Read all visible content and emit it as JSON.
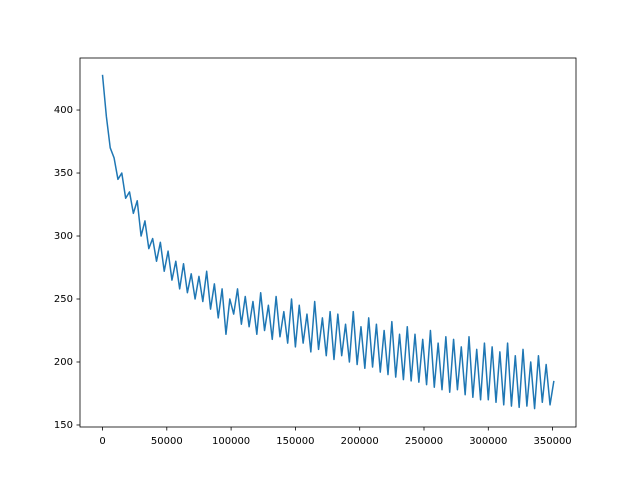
{
  "chart_data": {
    "type": "line",
    "x": [
      0,
      3000,
      6000,
      9000,
      12000,
      15000,
      18000,
      21000,
      24000,
      27000,
      30000,
      33000,
      36000,
      39000,
      42000,
      45000,
      48000,
      51000,
      54000,
      57000,
      60000,
      63000,
      66000,
      69000,
      72000,
      75000,
      78000,
      81000,
      84000,
      87000,
      90000,
      93000,
      96000,
      99000,
      102000,
      105000,
      108000,
      111000,
      114000,
      117000,
      120000,
      123000,
      126000,
      129000,
      132000,
      135000,
      138000,
      141000,
      144000,
      147000,
      150000,
      153000,
      156000,
      159000,
      162000,
      165000,
      168000,
      171000,
      174000,
      177000,
      180000,
      183000,
      186000,
      189000,
      192000,
      195000,
      198000,
      201000,
      204000,
      207000,
      210000,
      213000,
      216000,
      219000,
      222000,
      225000,
      228000,
      231000,
      234000,
      237000,
      240000,
      243000,
      246000,
      249000,
      252000,
      255000,
      258000,
      261000,
      264000,
      267000,
      270000,
      273000,
      276000,
      279000,
      282000,
      285000,
      288000,
      291000,
      294000,
      297000,
      300000,
      303000,
      306000,
      309000,
      312000,
      315000,
      318000,
      321000,
      324000,
      327000,
      330000,
      333000,
      336000,
      339000,
      342000,
      345000,
      348000,
      351000
    ],
    "series": [
      {
        "color": "#1f77b4",
        "values": [
          428,
          395,
          370,
          362,
          345,
          350,
          330,
          335,
          318,
          328,
          300,
          312,
          290,
          298,
          280,
          295,
          272,
          288,
          265,
          280,
          258,
          278,
          255,
          270,
          250,
          268,
          248,
          272,
          242,
          262,
          235,
          258,
          222,
          250,
          238,
          258,
          230,
          252,
          228,
          248,
          222,
          255,
          225,
          245,
          218,
          252,
          220,
          240,
          215,
          250,
          212,
          245,
          215,
          238,
          208,
          248,
          210,
          235,
          205,
          240,
          202,
          238,
          205,
          230,
          200,
          240,
          198,
          228,
          195,
          235,
          196,
          230,
          192,
          225,
          190,
          232,
          188,
          222,
          186,
          228,
          185,
          222,
          184,
          218,
          182,
          225,
          180,
          215,
          178,
          220,
          176,
          218,
          178,
          212,
          174,
          220,
          172,
          210,
          170,
          215,
          170,
          212,
          168,
          208,
          166,
          215,
          165,
          205,
          164,
          210,
          165,
          200,
          163,
          205,
          168,
          198,
          166,
          185
        ]
      }
    ],
    "xlim": [
      -17500,
      368200
    ],
    "ylim": [
      148.4,
      441.3
    ],
    "xticks": [
      0,
      50000,
      100000,
      150000,
      200000,
      250000,
      300000,
      350000
    ],
    "yticks": [
      150,
      200,
      250,
      300,
      350,
      400
    ]
  }
}
